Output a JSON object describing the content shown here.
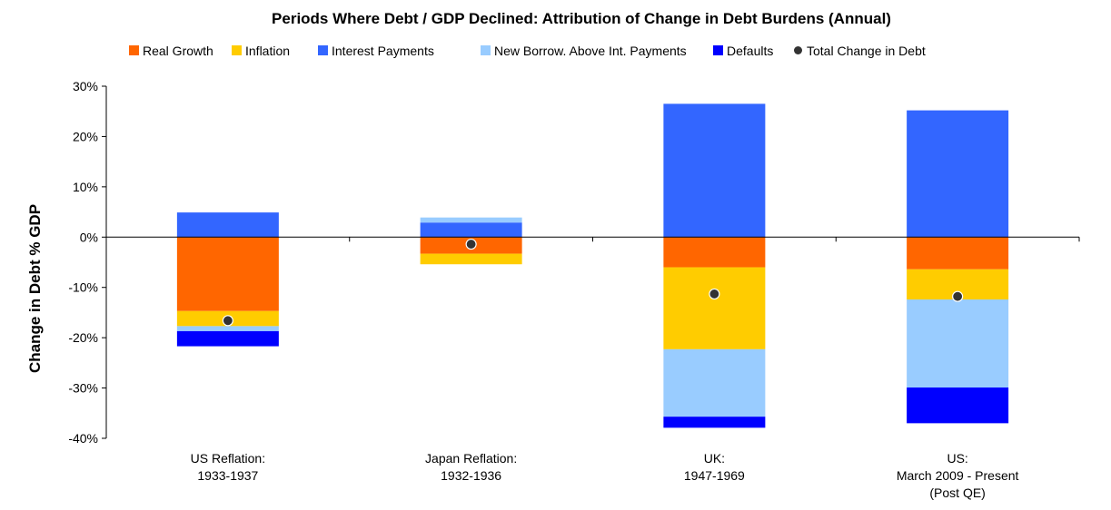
{
  "chart_data": {
    "type": "bar",
    "stacked": true,
    "title": "Periods Where Debt / GDP Declined: Attribution of Change in Debt Burdens (Annual)",
    "ylabel": "Change in Debt % GDP",
    "xlabel": "",
    "ylim": [
      -40,
      30
    ],
    "yticks": [
      30,
      20,
      10,
      0,
      -10,
      -20,
      -30,
      -40
    ],
    "ytick_labels": [
      "30%",
      "20%",
      "10%",
      "0%",
      "-10%",
      "-20%",
      "-30%",
      "-40%"
    ],
    "legend_position": "top",
    "categories": [
      [
        "US Reflation:",
        "1933-1937"
      ],
      [
        "Japan Reflation:",
        "1932-1936"
      ],
      [
        "UK:",
        "1947-1969"
      ],
      [
        "US:",
        "March 2009 - Present",
        "(Post QE)"
      ]
    ],
    "series": [
      {
        "name": "Real Growth",
        "color": "#FF6600",
        "values": [
          -14.7,
          -3.3,
          -6.0,
          -6.4
        ]
      },
      {
        "name": "Inflation",
        "color": "#FFCC00",
        "values": [
          -3.0,
          -2.1,
          -16.3,
          -6.0
        ]
      },
      {
        "name": "Interest Payments",
        "color": "#3366FF",
        "values": [
          4.9,
          2.9,
          26.5,
          25.2
        ]
      },
      {
        "name": "New Borrow. Above Int. Payments",
        "color": "#99CCFF",
        "values": [
          -1.0,
          1.0,
          -13.4,
          -17.5
        ]
      },
      {
        "name": "Defaults",
        "color": "#0000FF",
        "values": [
          -3.0,
          0.0,
          -2.2,
          -7.1
        ]
      }
    ],
    "total": {
      "name": "Total Change in Debt",
      "color": "#333333",
      "values": [
        -16.6,
        -1.4,
        -11.3,
        -11.8
      ]
    }
  }
}
